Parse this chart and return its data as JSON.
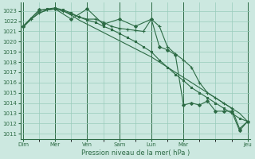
{
  "xlabel": "Pression niveau de la mer( hPa )",
  "ylim": [
    1010.5,
    1023.8
  ],
  "yticks": [
    1011,
    1012,
    1013,
    1014,
    1015,
    1016,
    1017,
    1018,
    1019,
    1020,
    1021,
    1022,
    1023
  ],
  "bg_color": "#cce8e0",
  "grid_color": "#99ccbb",
  "line_color": "#2d6b45",
  "tick_label_positions": [
    0,
    12,
    24,
    36,
    48,
    60,
    84
  ],
  "tick_label_names": [
    "Dim",
    "Mer",
    "Ven",
    "Sam",
    "Lun",
    "Mar",
    "Jeu"
  ],
  "xlim": [
    -1,
    85
  ],
  "lines": [
    {
      "x": [
        0,
        3,
        6,
        9,
        12,
        15,
        18,
        21,
        24,
        27,
        30,
        33,
        36,
        39,
        42,
        45,
        48,
        51,
        54,
        57,
        60,
        63,
        66,
        69,
        72,
        75,
        78,
        81,
        84
      ],
      "y": [
        1021.4,
        1022.2,
        1022.8,
        1023.1,
        1023.2,
        1023.0,
        1022.7,
        1022.4,
        1022.2,
        1022.2,
        1021.9,
        1021.5,
        1021.3,
        1021.2,
        1021.1,
        1021.0,
        1022.2,
        1021.5,
        1019.5,
        1018.8,
        1018.2,
        1017.5,
        1016.0,
        1015.0,
        1014.5,
        1014.0,
        1013.5,
        1011.5,
        1012.2
      ],
      "marker": "+",
      "ms": 3.5,
      "lw": 0.8
    },
    {
      "x": [
        0,
        3,
        6,
        9,
        12,
        15,
        18,
        21,
        24,
        27,
        30,
        33,
        36,
        39,
        42,
        45,
        48,
        51,
        54,
        57,
        60,
        63,
        66,
        69,
        72,
        75,
        78,
        81,
        84
      ],
      "y": [
        1021.5,
        1022.3,
        1023.0,
        1023.2,
        1023.3,
        1023.1,
        1022.8,
        1022.4,
        1022.1,
        1021.9,
        1021.5,
        1021.2,
        1020.8,
        1020.4,
        1020.0,
        1019.5,
        1019.0,
        1018.2,
        1017.5,
        1016.8,
        1016.2,
        1015.5,
        1015.0,
        1014.5,
        1014.0,
        1013.5,
        1013.0,
        1012.5,
        1012.2
      ],
      "marker": "s",
      "ms": 2.0,
      "lw": 0.8
    },
    {
      "x": [
        0,
        3,
        6,
        9,
        12,
        15,
        18,
        21,
        24,
        27,
        30,
        33,
        36,
        39,
        42,
        45,
        48,
        51,
        54,
        57,
        60,
        63,
        66,
        69,
        72,
        75,
        78,
        81,
        84
      ],
      "y": [
        1021.5,
        1022.2,
        1022.8,
        1023.1,
        1023.2,
        1023.0,
        1022.6,
        1022.1,
        1021.7,
        1021.3,
        1020.9,
        1020.5,
        1020.1,
        1019.7,
        1019.3,
        1018.9,
        1018.5,
        1018.0,
        1017.5,
        1017.0,
        1016.5,
        1016.0,
        1015.5,
        1015.0,
        1014.5,
        1014.0,
        1013.5,
        1013.0,
        1012.2
      ],
      "marker": null,
      "ms": 0,
      "lw": 0.8
    },
    {
      "x": [
        0,
        6,
        12,
        18,
        24,
        30,
        36,
        42,
        48,
        51,
        54,
        57,
        60,
        63,
        66,
        69,
        72,
        75,
        78,
        81,
        84
      ],
      "y": [
        1021.5,
        1023.1,
        1023.2,
        1022.2,
        1023.2,
        1021.7,
        1022.2,
        1021.5,
        1022.2,
        1019.5,
        1019.2,
        1018.7,
        1013.8,
        1014.0,
        1013.8,
        1014.2,
        1013.2,
        1013.2,
        1013.2,
        1011.3,
        1012.2
      ],
      "marker": "D",
      "ms": 2.0,
      "lw": 0.8
    }
  ]
}
